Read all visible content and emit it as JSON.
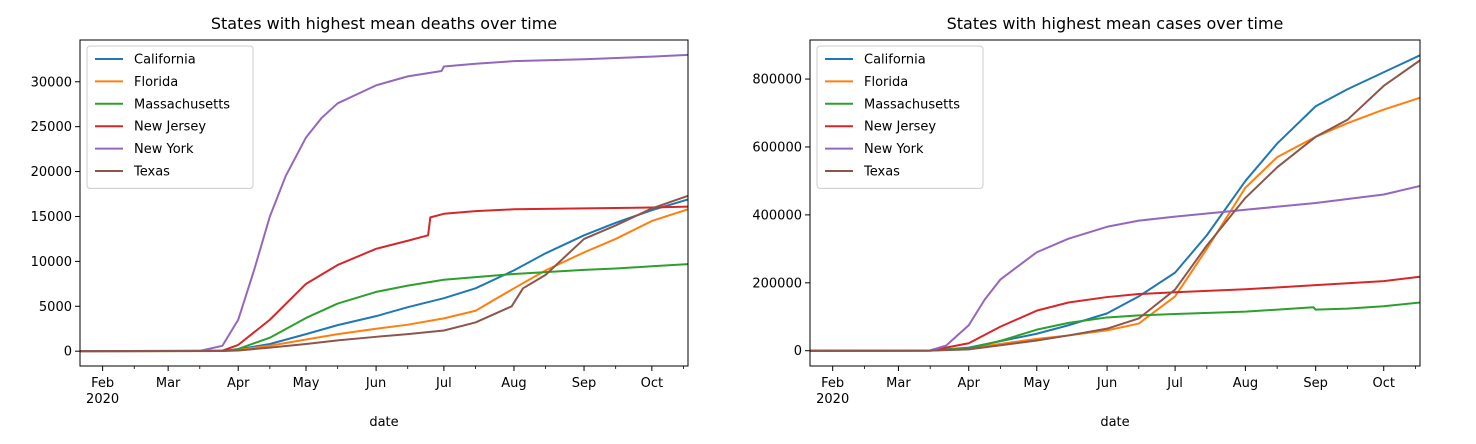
{
  "chart_data": [
    {
      "type": "line",
      "title": "States with highest mean deaths over time",
      "xlabel": "date",
      "ylabel": "",
      "xlim": [
        "2020-01-22",
        "2020-10-17"
      ],
      "ylim": [
        -1650,
        34650
      ],
      "x_ticks": [
        {
          "date": "2020-02-01",
          "label": "Feb",
          "sublabel": "2020"
        },
        {
          "date": "2020-03-01",
          "label": "Mar"
        },
        {
          "date": "2020-04-01",
          "label": "Apr"
        },
        {
          "date": "2020-05-01",
          "label": "May"
        },
        {
          "date": "2020-06-01",
          "label": "Jun"
        },
        {
          "date": "2020-07-01",
          "label": "Jul"
        },
        {
          "date": "2020-08-01",
          "label": "Aug"
        },
        {
          "date": "2020-09-01",
          "label": "Sep"
        },
        {
          "date": "2020-10-01",
          "label": "Oct"
        }
      ],
      "y_ticks": [
        0,
        5000,
        10000,
        15000,
        20000,
        25000,
        30000
      ],
      "y_tick_labels": [
        "0",
        "5000",
        "10000",
        "15000",
        "20000",
        "25000",
        "30000"
      ],
      "legend_position": "top-left",
      "grid": false,
      "series": [
        {
          "name": "California",
          "color": "#1f77b4",
          "points": [
            [
              "2020-01-22",
              0
            ],
            [
              "2020-03-25",
              40
            ],
            [
              "2020-04-01",
              200
            ],
            [
              "2020-04-15",
              800
            ],
            [
              "2020-05-01",
              1900
            ],
            [
              "2020-05-15",
              2900
            ],
            [
              "2020-06-01",
              3900
            ],
            [
              "2020-06-15",
              4900
            ],
            [
              "2020-07-01",
              5900
            ],
            [
              "2020-07-15",
              7000
            ],
            [
              "2020-08-01",
              9000
            ],
            [
              "2020-08-15",
              10900
            ],
            [
              "2020-09-01",
              12900
            ],
            [
              "2020-09-15",
              14300
            ],
            [
              "2020-10-01",
              15700
            ],
            [
              "2020-10-17",
              16900
            ]
          ]
        },
        {
          "name": "Florida",
          "color": "#ff7f0e",
          "points": [
            [
              "2020-01-22",
              0
            ],
            [
              "2020-03-25",
              20
            ],
            [
              "2020-04-01",
              150
            ],
            [
              "2020-04-15",
              600
            ],
            [
              "2020-05-01",
              1300
            ],
            [
              "2020-05-15",
              1900
            ],
            [
              "2020-06-01",
              2500
            ],
            [
              "2020-06-15",
              2950
            ],
            [
              "2020-07-01",
              3650
            ],
            [
              "2020-07-15",
              4500
            ],
            [
              "2020-08-01",
              7000
            ],
            [
              "2020-08-15",
              9000
            ],
            [
              "2020-09-01",
              11000
            ],
            [
              "2020-09-15",
              12500
            ],
            [
              "2020-10-01",
              14500
            ],
            [
              "2020-10-17",
              15800
            ]
          ]
        },
        {
          "name": "Massachusetts",
          "color": "#2ca02c",
          "points": [
            [
              "2020-01-22",
              0
            ],
            [
              "2020-03-25",
              25
            ],
            [
              "2020-04-01",
              250
            ],
            [
              "2020-04-15",
              1500
            ],
            [
              "2020-05-01",
              3700
            ],
            [
              "2020-05-15",
              5300
            ],
            [
              "2020-06-01",
              6600
            ],
            [
              "2020-06-15",
              7300
            ],
            [
              "2020-07-01",
              7950
            ],
            [
              "2020-07-15",
              8250
            ],
            [
              "2020-08-01",
              8600
            ],
            [
              "2020-08-15",
              8800
            ],
            [
              "2020-09-01",
              9050
            ],
            [
              "2020-09-15",
              9200
            ],
            [
              "2020-10-01",
              9450
            ],
            [
              "2020-10-17",
              9700
            ]
          ]
        },
        {
          "name": "New Jersey",
          "color": "#d62728",
          "points": [
            [
              "2020-01-22",
              0
            ],
            [
              "2020-03-25",
              60
            ],
            [
              "2020-04-01",
              700
            ],
            [
              "2020-04-15",
              3500
            ],
            [
              "2020-05-01",
              7500
            ],
            [
              "2020-05-15",
              9600
            ],
            [
              "2020-06-01",
              11400
            ],
            [
              "2020-06-15",
              12300
            ],
            [
              "2020-06-24",
              12900
            ],
            [
              "2020-06-25",
              14900
            ],
            [
              "2020-07-01",
              15300
            ],
            [
              "2020-07-15",
              15600
            ],
            [
              "2020-08-01",
              15800
            ],
            [
              "2020-09-01",
              15900
            ],
            [
              "2020-10-01",
              16000
            ],
            [
              "2020-10-17",
              16100
            ]
          ]
        },
        {
          "name": "New York",
          "color": "#9467bd",
          "points": [
            [
              "2020-01-22",
              0
            ],
            [
              "2020-03-15",
              30
            ],
            [
              "2020-03-25",
              600
            ],
            [
              "2020-04-01",
              3500
            ],
            [
              "2020-04-08",
              9000
            ],
            [
              "2020-04-15",
              15000
            ],
            [
              "2020-04-22",
              19500
            ],
            [
              "2020-05-01",
              23800
            ],
            [
              "2020-05-08",
              26000
            ],
            [
              "2020-05-15",
              27600
            ],
            [
              "2020-06-01",
              29600
            ],
            [
              "2020-06-15",
              30600
            ],
            [
              "2020-06-30",
              31200
            ],
            [
              "2020-07-01",
              31700
            ],
            [
              "2020-07-15",
              32000
            ],
            [
              "2020-08-01",
              32300
            ],
            [
              "2020-09-01",
              32500
            ],
            [
              "2020-10-01",
              32800
            ],
            [
              "2020-10-17",
              33000
            ]
          ]
        },
        {
          "name": "Texas",
          "color": "#8c564b",
          "points": [
            [
              "2020-01-22",
              0
            ],
            [
              "2020-03-25",
              15
            ],
            [
              "2020-04-01",
              80
            ],
            [
              "2020-04-15",
              400
            ],
            [
              "2020-05-01",
              800
            ],
            [
              "2020-05-15",
              1200
            ],
            [
              "2020-06-01",
              1600
            ],
            [
              "2020-06-15",
              1900
            ],
            [
              "2020-07-01",
              2300
            ],
            [
              "2020-07-15",
              3200
            ],
            [
              "2020-07-31",
              5000
            ],
            [
              "2020-08-05",
              7000
            ],
            [
              "2020-08-15",
              8500
            ],
            [
              "2020-09-01",
              12500
            ],
            [
              "2020-09-15",
              14000
            ],
            [
              "2020-10-01",
              15900
            ],
            [
              "2020-10-17",
              17300
            ]
          ]
        }
      ]
    },
    {
      "type": "line",
      "title": "States with highest mean cases over time",
      "xlabel": "date",
      "ylabel": "",
      "xlim": [
        "2020-01-22",
        "2020-10-17"
      ],
      "ylim": [
        -45000,
        915000
      ],
      "x_ticks": [
        {
          "date": "2020-02-01",
          "label": "Feb",
          "sublabel": "2020"
        },
        {
          "date": "2020-03-01",
          "label": "Mar"
        },
        {
          "date": "2020-04-01",
          "label": "Apr"
        },
        {
          "date": "2020-05-01",
          "label": "May"
        },
        {
          "date": "2020-06-01",
          "label": "Jun"
        },
        {
          "date": "2020-07-01",
          "label": "Jul"
        },
        {
          "date": "2020-08-01",
          "label": "Aug"
        },
        {
          "date": "2020-09-01",
          "label": "Sep"
        },
        {
          "date": "2020-10-01",
          "label": "Oct"
        }
      ],
      "y_ticks": [
        0,
        200000,
        400000,
        600000,
        800000
      ],
      "y_tick_labels": [
        "0",
        "200000",
        "400000",
        "600000",
        "800000"
      ],
      "legend_position": "top-left",
      "grid": false,
      "series": [
        {
          "name": "California",
          "color": "#1f77b4",
          "points": [
            [
              "2020-01-22",
              0
            ],
            [
              "2020-03-15",
              500
            ],
            [
              "2020-04-01",
              9000
            ],
            [
              "2020-05-01",
              50000
            ],
            [
              "2020-05-15",
              75000
            ],
            [
              "2020-06-01",
              110000
            ],
            [
              "2020-06-15",
              160000
            ],
            [
              "2020-07-01",
              230000
            ],
            [
              "2020-07-15",
              340000
            ],
            [
              "2020-08-01",
              500000
            ],
            [
              "2020-08-15",
              610000
            ],
            [
              "2020-09-01",
              720000
            ],
            [
              "2020-09-15",
              770000
            ],
            [
              "2020-10-01",
              820000
            ],
            [
              "2020-10-17",
              870000
            ]
          ]
        },
        {
          "name": "Florida",
          "color": "#ff7f0e",
          "points": [
            [
              "2020-01-22",
              0
            ],
            [
              "2020-03-15",
              100
            ],
            [
              "2020-04-01",
              7000
            ],
            [
              "2020-05-01",
              35000
            ],
            [
              "2020-05-15",
              45000
            ],
            [
              "2020-06-01",
              60000
            ],
            [
              "2020-06-15",
              80000
            ],
            [
              "2020-07-01",
              160000
            ],
            [
              "2020-07-15",
              300000
            ],
            [
              "2020-08-01",
              480000
            ],
            [
              "2020-08-15",
              570000
            ],
            [
              "2020-09-01",
              630000
            ],
            [
              "2020-09-15",
              670000
            ],
            [
              "2020-10-01",
              710000
            ],
            [
              "2020-10-17",
              745000
            ]
          ]
        },
        {
          "name": "Massachusetts",
          "color": "#2ca02c",
          "points": [
            [
              "2020-01-22",
              0
            ],
            [
              "2020-03-15",
              100
            ],
            [
              "2020-04-01",
              7000
            ],
            [
              "2020-04-15",
              29000
            ],
            [
              "2020-05-01",
              62000
            ],
            [
              "2020-05-15",
              82000
            ],
            [
              "2020-06-01",
              98000
            ],
            [
              "2020-06-15",
              104000
            ],
            [
              "2020-07-01",
              108000
            ],
            [
              "2020-08-01",
              115000
            ],
            [
              "2020-08-31",
              128000
            ],
            [
              "2020-09-01",
              121000
            ],
            [
              "2020-09-15",
              124000
            ],
            [
              "2020-10-01",
              131000
            ],
            [
              "2020-10-17",
              142000
            ]
          ]
        },
        {
          "name": "New Jersey",
          "color": "#d62728",
          "points": [
            [
              "2020-01-22",
              0
            ],
            [
              "2020-03-15",
              200
            ],
            [
              "2020-04-01",
              22000
            ],
            [
              "2020-04-15",
              71000
            ],
            [
              "2020-05-01",
              118000
            ],
            [
              "2020-05-15",
              142000
            ],
            [
              "2020-06-01",
              158000
            ],
            [
              "2020-06-15",
              167000
            ],
            [
              "2020-07-01",
              172000
            ],
            [
              "2020-08-01",
              181000
            ],
            [
              "2020-09-01",
              193000
            ],
            [
              "2020-10-01",
              205000
            ],
            [
              "2020-10-17",
              218000
            ]
          ]
        },
        {
          "name": "New York",
          "color": "#9467bd",
          "points": [
            [
              "2020-01-22",
              0
            ],
            [
              "2020-03-15",
              1000
            ],
            [
              "2020-03-22",
              15000
            ],
            [
              "2020-04-01",
              75000
            ],
            [
              "2020-04-08",
              150000
            ],
            [
              "2020-04-15",
              210000
            ],
            [
              "2020-05-01",
              290000
            ],
            [
              "2020-05-15",
              330000
            ],
            [
              "2020-06-01",
              365000
            ],
            [
              "2020-06-15",
              383000
            ],
            [
              "2020-07-01",
              395000
            ],
            [
              "2020-08-01",
              415000
            ],
            [
              "2020-09-01",
              435000
            ],
            [
              "2020-10-01",
              460000
            ],
            [
              "2020-10-17",
              485000
            ]
          ]
        },
        {
          "name": "Texas",
          "color": "#8c564b",
          "points": [
            [
              "2020-01-22",
              0
            ],
            [
              "2020-03-15",
              100
            ],
            [
              "2020-04-01",
              4000
            ],
            [
              "2020-05-01",
              30000
            ],
            [
              "2020-05-15",
              45000
            ],
            [
              "2020-06-01",
              65000
            ],
            [
              "2020-06-15",
              95000
            ],
            [
              "2020-07-01",
              180000
            ],
            [
              "2020-07-15",
              310000
            ],
            [
              "2020-08-01",
              450000
            ],
            [
              "2020-08-15",
              540000
            ],
            [
              "2020-09-01",
              630000
            ],
            [
              "2020-09-15",
              680000
            ],
            [
              "2020-10-01",
              780000
            ],
            [
              "2020-10-17",
              855000
            ]
          ]
        }
      ]
    }
  ]
}
